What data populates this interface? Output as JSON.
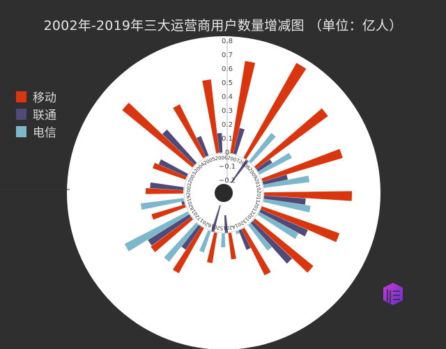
{
  "title": "2002年-2019年三大运营商用户数量增减图 （单位：亿人）",
  "legend": [
    {
      "label": "移动",
      "color": "#d9360f"
    },
    {
      "label": "联通",
      "color": "#4f4a78"
    },
    {
      "label": "电信",
      "color": "#7cb7cc"
    }
  ],
  "colors": {
    "background": "#2f2f2f",
    "plot": "#ffffff"
  },
  "logo_icon": "cube-logo-icon",
  "chart_data": {
    "type": "polar-bar",
    "title": "2002年-2019年三大运营商用户数量增减图 （单位：亿人）",
    "categories": [
      "2002",
      "2003",
      "2004",
      "2005",
      "2006",
      "2007",
      "2008",
      "2009",
      "2010",
      "2011",
      "2012",
      "2013",
      "2014",
      "2015",
      "2016",
      "2017",
      "2018",
      "2019"
    ],
    "radial_ticks": [
      "-0.2",
      "-0.1",
      "0",
      "0.1",
      "0.2",
      "0.3",
      "0.4",
      "0.5",
      "0.6",
      "0.7",
      "0.8"
    ],
    "rlim": [
      -0.3,
      0.8
    ],
    "legend_position": "left",
    "series": [
      {
        "name": "移动",
        "color": "#d9360f",
        "values": [
          0.27,
          0.25,
          0.65,
          0.42,
          0.53,
          0.67,
          0.78,
          0.64,
          0.6,
          0.63,
          0.59,
          0.54,
          0.37,
          0.19,
          0.22,
          0.37,
          0.36,
          0.25
        ]
      },
      {
        "name": "联通",
        "color": "#4f4a78",
        "values": [
          0.24,
          0.22,
          0.32,
          0.15,
          0.14,
          0.19,
          -0.2,
          0.12,
          0.18,
          0.3,
          0.37,
          0.39,
          0.15,
          -0.13,
          -0.2,
          0.2,
          0.35,
          0.02
        ]
      },
      {
        "name": "电信",
        "color": "#7cb7cc",
        "values": [
          null,
          null,
          null,
          null,
          null,
          null,
          0.26,
          0.26,
          0.33,
          0.34,
          0.32,
          0.23,
          0.02,
          0.1,
          0.16,
          0.34,
          0.51,
          0.31
        ]
      }
    ]
  }
}
